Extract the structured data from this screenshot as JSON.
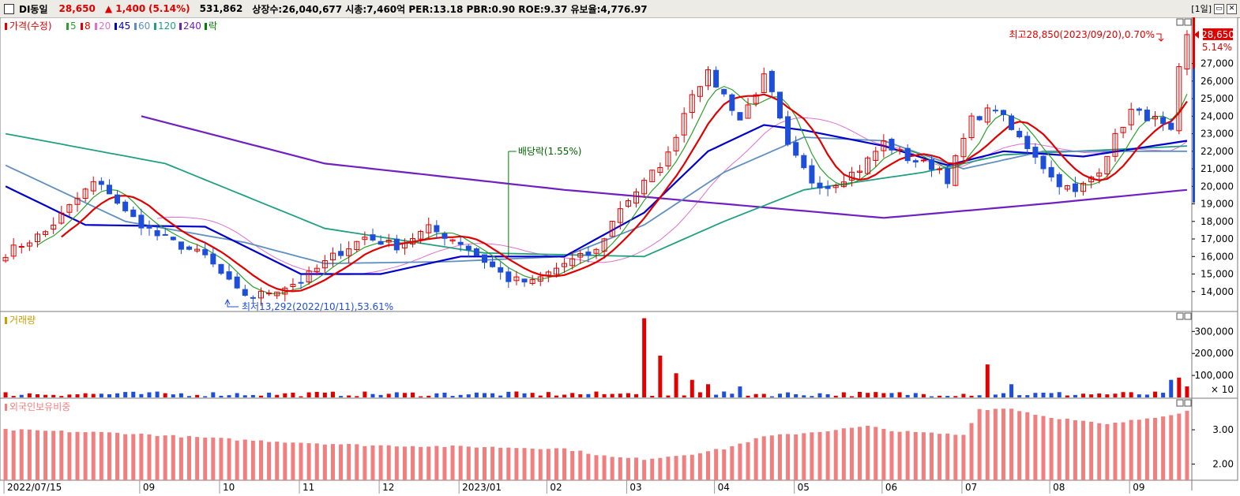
{
  "header": {
    "name": "DI동일",
    "price": "28,650",
    "change": "▲ 1,400",
    "change_pct": "(5.14%)",
    "volume": "531,862",
    "info": "상장수:26,040,677  시총:7,460억  PER:13.18  PBR:0.90  ROE:9.37  유보율:4,776.97",
    "period": "[1일]"
  },
  "legend": {
    "price": "가격(수정)",
    "ma": [
      {
        "label": "5",
        "color": "#2ca02c"
      },
      {
        "label": "8",
        "color": "#e00000"
      },
      {
        "label": "20",
        "color": "#e070d0"
      },
      {
        "label": "45",
        "color": "#0000cc"
      },
      {
        "label": "60",
        "color": "#5f8fbf"
      },
      {
        "label": "120",
        "color": "#20a080"
      },
      {
        "label": "240",
        "color": "#7020c0"
      },
      {
        "label": "락",
        "color": "#008000"
      }
    ],
    "volume": "거래량",
    "foreign": "외국인보유비중"
  },
  "annotations": {
    "high": "최고28,850(2023/09/20),0.70%",
    "low": "최저13,292(2022/10/11),53.61%",
    "ex_div": "배당락(1.55%)",
    "current_price": "28,650",
    "current_pct": "5.14%",
    "vol_multiplier": "× 10"
  },
  "colors": {
    "up": "#e00000",
    "down": "#1f4fd8",
    "foreign": "#f08080"
  },
  "chart_data": [
    {
      "type": "candlestick",
      "title": "가격(수정)",
      "x_ticks": [
        "2022/07/15",
        "09",
        "10",
        "11",
        "12",
        "2023/01",
        "02",
        "03",
        "04",
        "05",
        "06",
        "07",
        "08",
        "09"
      ],
      "y_ticks": [
        "14,000",
        "15,000",
        "16,000",
        "17,000",
        "18,000",
        "19,000",
        "20,000",
        "21,000",
        "22,000",
        "23,000",
        "24,000",
        "25,000",
        "26,000",
        "27,000"
      ],
      "ylim": [
        13000,
        29500
      ],
      "close_path": [
        [
          0,
          16200
        ],
        [
          5,
          17400
        ],
        [
          9,
          19300
        ],
        [
          11,
          20200
        ],
        [
          13,
          19700
        ],
        [
          15,
          18500
        ],
        [
          19,
          17200
        ],
        [
          25,
          16000
        ],
        [
          29,
          14000
        ],
        [
          31,
          13700
        ],
        [
          37,
          14600
        ],
        [
          41,
          16000
        ],
        [
          45,
          17100
        ],
        [
          49,
          16600
        ],
        [
          53,
          17600
        ],
        [
          57,
          16800
        ],
        [
          61,
          15400
        ],
        [
          63,
          14700
        ],
        [
          66,
          14500
        ],
        [
          70,
          15600
        ],
        [
          74,
          16300
        ],
        [
          77,
          18800
        ],
        [
          80,
          20200
        ],
        [
          83,
          21800
        ],
        [
          86,
          25400
        ],
        [
          88,
          26400
        ],
        [
          90,
          25200
        ],
        [
          92,
          23800
        ],
        [
          95,
          26200
        ],
        [
          96,
          25200
        ],
        [
          98,
          22200
        ],
        [
          101,
          20300
        ],
        [
          103,
          20000
        ],
        [
          107,
          21000
        ],
        [
          110,
          22500
        ],
        [
          113,
          21600
        ],
        [
          117,
          21000
        ],
        [
          118,
          20400
        ],
        [
          121,
          23800
        ],
        [
          124,
          24500
        ],
        [
          126,
          23200
        ],
        [
          129,
          21800
        ],
        [
          131,
          20500
        ],
        [
          134,
          19600
        ],
        [
          137,
          21000
        ],
        [
          139,
          22800
        ],
        [
          141,
          24300
        ],
        [
          144,
          23800
        ],
        [
          146,
          23000
        ],
        [
          147,
          26600
        ],
        [
          148,
          28650
        ]
      ],
      "ma_lines": [
        {
          "name": "240",
          "color": "#7020c0",
          "points": [
            [
              17,
              24000
            ],
            [
              40,
              21300
            ],
            [
              70,
              19800
            ],
            [
              90,
              19000
            ],
            [
              110,
              18200
            ],
            [
              130,
              19000
            ],
            [
              148,
              19800
            ]
          ]
        },
        {
          "name": "120",
          "color": "#20a080",
          "points": [
            [
              0,
              23000
            ],
            [
              20,
              21300
            ],
            [
              40,
              17600
            ],
            [
              60,
              16200
            ],
            [
              80,
              16000
            ],
            [
              90,
              18000
            ],
            [
              100,
              19800
            ],
            [
              115,
              20800
            ],
            [
              125,
              21800
            ],
            [
              148,
              22300
            ]
          ]
        },
        {
          "name": "60",
          "color": "#5f8fbf",
          "points": [
            [
              0,
              21200
            ],
            [
              15,
              18000
            ],
            [
              30,
              16800
            ],
            [
              40,
              15600
            ],
            [
              55,
              15700
            ],
            [
              70,
              16000
            ],
            [
              80,
              17800
            ],
            [
              90,
              20800
            ],
            [
              100,
              22800
            ],
            [
              110,
              22600
            ],
            [
              120,
              21000
            ],
            [
              130,
              22000
            ],
            [
              148,
              22000
            ]
          ]
        },
        {
          "name": "45",
          "color": "#0000cc",
          "points": [
            [
              0,
              20000
            ],
            [
              10,
              17800
            ],
            [
              25,
              17700
            ],
            [
              37,
              15000
            ],
            [
              47,
              15000
            ],
            [
              57,
              16000
            ],
            [
              70,
              16000
            ],
            [
              80,
              18500
            ],
            [
              88,
              22000
            ],
            [
              95,
              23500
            ],
            [
              100,
              23200
            ],
            [
              110,
              22300
            ],
            [
              118,
              21200
            ],
            [
              125,
              22000
            ],
            [
              135,
              21700
            ],
            [
              148,
              22600
            ]
          ]
        }
      ]
    },
    {
      "type": "bar",
      "title": "거래량",
      "y_ticks": [
        "100,000",
        "200,000",
        "300,000"
      ],
      "ylim": [
        0,
        380000
      ],
      "unit": "× 10",
      "spikes": [
        [
          76,
          16000
        ],
        [
          79,
          15000
        ],
        [
          80,
          360000
        ],
        [
          82,
          190000
        ],
        [
          84,
          110000
        ],
        [
          86,
          80000
        ],
        [
          88,
          60000
        ],
        [
          92,
          50000
        ],
        [
          123,
          150000
        ],
        [
          126,
          60000
        ],
        [
          146,
          80000
        ],
        [
          147,
          90000
        ],
        [
          148,
          50000
        ]
      ]
    },
    {
      "type": "bar",
      "title": "외국인보유비중",
      "y_ticks": [
        "2.00",
        "3.00"
      ],
      "ylim": [
        1.6,
        3.85
      ],
      "values_path": [
        [
          0,
          3.0
        ],
        [
          15,
          2.9
        ],
        [
          30,
          2.7
        ],
        [
          45,
          2.55
        ],
        [
          60,
          2.5
        ],
        [
          70,
          2.45
        ],
        [
          76,
          2.2
        ],
        [
          80,
          2.15
        ],
        [
          86,
          2.3
        ],
        [
          90,
          2.45
        ],
        [
          95,
          2.8
        ],
        [
          102,
          2.95
        ],
        [
          108,
          3.1
        ],
        [
          112,
          2.95
        ],
        [
          120,
          2.85
        ],
        [
          122,
          3.6
        ],
        [
          126,
          3.62
        ],
        [
          130,
          3.4
        ],
        [
          138,
          3.15
        ],
        [
          146,
          3.45
        ],
        [
          148,
          3.55
        ]
      ]
    }
  ]
}
